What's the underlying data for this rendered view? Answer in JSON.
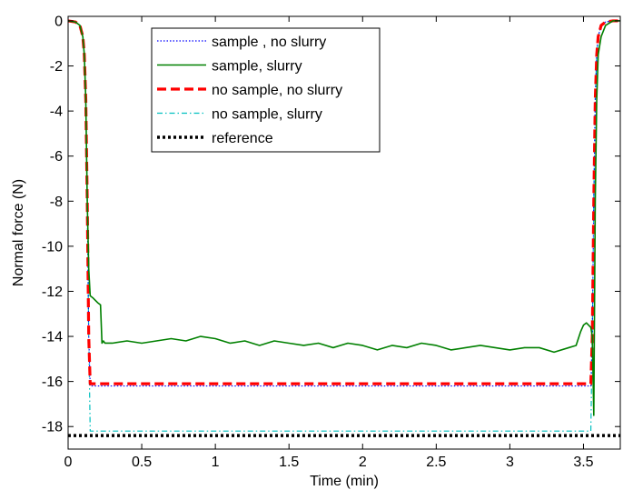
{
  "chart_data": {
    "type": "line",
    "title": "",
    "xlabel": "Time (min)",
    "ylabel": "Normal force (N)",
    "xlim": [
      0,
      3.75
    ],
    "ylim": [
      -19,
      0.2
    ],
    "xticks": [
      0,
      0.5,
      1,
      1.5,
      2,
      2.5,
      3,
      3.5
    ],
    "xtick_labels": [
      "0",
      "0.5",
      "1",
      "1.5",
      "2",
      "2.5",
      "3",
      "3.5"
    ],
    "yticks": [
      0,
      -2,
      -4,
      -6,
      -8,
      -10,
      -12,
      -14,
      -16,
      -18
    ],
    "ytick_labels": [
      "0",
      "-2",
      "-4",
      "-6",
      "-8",
      "-10",
      "-12",
      "-14",
      "-16",
      "-18"
    ],
    "grid": false,
    "legend_position": "top-center",
    "series": [
      {
        "name": "sample , no slurry",
        "color": "#0000ff",
        "style": "dotted",
        "x": [
          0,
          0.05,
          0.08,
          0.1,
          0.11,
          0.12,
          0.13,
          0.14,
          0.15,
          3.55,
          3.56,
          3.57,
          3.58,
          3.59,
          3.6,
          3.62,
          3.65,
          3.7,
          3.75
        ],
        "y": [
          0,
          -0.05,
          -0.2,
          -0.7,
          -1.5,
          -3.5,
          -8,
          -14,
          -16.2,
          -16.2,
          -14,
          -8,
          -3.5,
          -1.5,
          -0.7,
          -0.2,
          -0.05,
          0,
          0
        ]
      },
      {
        "name": "sample, slurry",
        "color": "#008000",
        "style": "solid",
        "x": [
          0,
          0.05,
          0.08,
          0.1,
          0.11,
          0.12,
          0.13,
          0.14,
          0.15,
          0.17,
          0.2,
          0.22,
          0.23,
          0.24,
          0.25,
          0.3,
          0.4,
          0.5,
          0.6,
          0.7,
          0.8,
          0.9,
          1.0,
          1.1,
          1.2,
          1.3,
          1.4,
          1.5,
          1.6,
          1.7,
          1.8,
          1.9,
          2.0,
          2.1,
          2.2,
          2.3,
          2.4,
          2.5,
          2.6,
          2.7,
          2.8,
          2.9,
          3.0,
          3.1,
          3.2,
          3.3,
          3.4,
          3.45,
          3.48,
          3.5,
          3.52,
          3.55,
          3.56,
          3.57,
          3.58,
          3.59,
          3.6,
          3.62,
          3.65,
          3.7,
          3.75
        ],
        "y": [
          0,
          -0.05,
          -0.2,
          -0.7,
          -1.5,
          -3.5,
          -8,
          -11,
          -12.2,
          -12.3,
          -12.5,
          -12.6,
          -14.3,
          -14.2,
          -14.3,
          -14.3,
          -14.2,
          -14.3,
          -14.2,
          -14.1,
          -14.2,
          -14.0,
          -14.1,
          -14.3,
          -14.2,
          -14.4,
          -14.2,
          -14.3,
          -14.4,
          -14.3,
          -14.5,
          -14.3,
          -14.4,
          -14.6,
          -14.4,
          -14.5,
          -14.3,
          -14.4,
          -14.6,
          -14.5,
          -14.4,
          -14.5,
          -14.6,
          -14.5,
          -14.5,
          -14.7,
          -14.5,
          -14.4,
          -13.8,
          -13.5,
          -13.4,
          -13.6,
          -14,
          -17.5,
          -8,
          -3.5,
          -1.5,
          -0.7,
          -0.2,
          0,
          0
        ]
      },
      {
        "name": "no sample, no slurry",
        "color": "#ff0000",
        "style": "dashed",
        "x": [
          0,
          0.05,
          0.08,
          0.1,
          0.11,
          0.12,
          0.13,
          0.14,
          0.15,
          3.55,
          3.56,
          3.57,
          3.58,
          3.59,
          3.6,
          3.62,
          3.65,
          3.7,
          3.75
        ],
        "y": [
          0,
          -0.05,
          -0.2,
          -0.7,
          -1.5,
          -3.5,
          -8,
          -14,
          -16.1,
          -16.1,
          -14,
          -8,
          -3.5,
          -1.5,
          -0.7,
          -0.2,
          -0.05,
          0,
          0
        ]
      },
      {
        "name": "no sample, slurry",
        "color": "#00bfbf",
        "style": "dashdot",
        "x": [
          0,
          0.05,
          0.08,
          0.1,
          0.11,
          0.12,
          0.13,
          0.14,
          0.15,
          3.55,
          3.56,
          3.57,
          3.58,
          3.59,
          3.6,
          3.62,
          3.65,
          3.7,
          3.75
        ],
        "y": [
          0,
          -0.05,
          -0.2,
          -0.7,
          -1.5,
          -3.5,
          -8,
          -14,
          -18.2,
          -18.2,
          -14,
          -8,
          -3.5,
          -1.5,
          -0.7,
          -0.2,
          -0.05,
          0,
          0
        ]
      },
      {
        "name": "reference",
        "color": "#000000",
        "style": "dotted-thick",
        "x": [
          0,
          3.75
        ],
        "y": [
          -18.4,
          -18.4
        ]
      }
    ]
  }
}
